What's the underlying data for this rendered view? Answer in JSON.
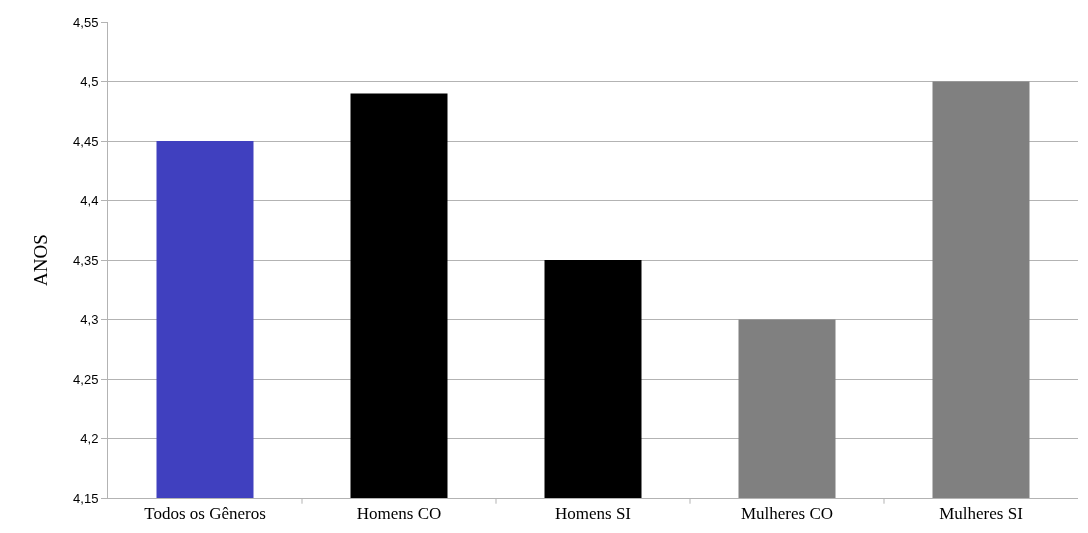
{
  "chart_data": {
    "type": "bar",
    "ylabel": "ANOS",
    "categories": [
      "Todos os Gêneros",
      "Homens CO",
      "Homens SI",
      "Mulheres CO",
      "Mulheres SI"
    ],
    "values": [
      4.45,
      4.49,
      4.35,
      4.3,
      4.5
    ],
    "colors": [
      "#4040bf",
      "#000000",
      "#000000",
      "#808080",
      "#808080"
    ],
    "ylim": [
      4.15,
      4.55
    ],
    "yticks": [
      {
        "value": 4.15,
        "label": "4,15"
      },
      {
        "value": 4.2,
        "label": "4,2"
      },
      {
        "value": 4.25,
        "label": "4,25"
      },
      {
        "value": 4.3,
        "label": "4,3"
      },
      {
        "value": 4.35,
        "label": "4,35"
      },
      {
        "value": 4.4,
        "label": "4,4"
      },
      {
        "value": 4.45,
        "label": "4,45"
      },
      {
        "value": 4.5,
        "label": "4,5"
      },
      {
        "value": 4.55,
        "label": "4,55"
      }
    ],
    "grid": "y"
  }
}
